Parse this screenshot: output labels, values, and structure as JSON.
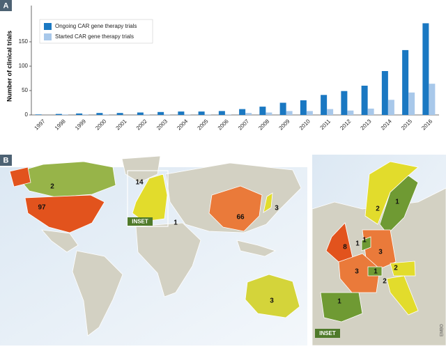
{
  "chart_data": {
    "type": "bar",
    "panel": "A",
    "ylabel": "Number of clinical trials",
    "categories": [
      "1997",
      "1998",
      "1999",
      "2000",
      "2001",
      "2002",
      "2003",
      "2004",
      "2005",
      "2006",
      "2007",
      "2008",
      "2009",
      "2010",
      "2011",
      "2012",
      "2013",
      "2014",
      "2015",
      "2016"
    ],
    "series": [
      {
        "name": "Ongoing CAR gene therapy trials",
        "color": "#1a78c2",
        "values": [
          1,
          2,
          3,
          4,
          4,
          5,
          6,
          7,
          7,
          8,
          12,
          17,
          25,
          30,
          41,
          49,
          60,
          90,
          133,
          188
        ]
      },
      {
        "name": "Started CAR gene therapy trials",
        "color": "#a8c8ea",
        "values": [
          0,
          1,
          1,
          1,
          0,
          1,
          1,
          1,
          1,
          1,
          4,
          5,
          8,
          8,
          12,
          9,
          13,
          31,
          46,
          64
        ]
      }
    ],
    "ylim": [
      0,
      200
    ],
    "yticks": [
      0,
      50,
      100,
      150
    ],
    "legend": "upper-left"
  },
  "map": {
    "panel": "B",
    "world_counts": [
      2,
      97,
      14,
      66,
      3,
      3,
      1
    ],
    "inset_counts": [
      2,
      1,
      8,
      1,
      1,
      3,
      3,
      1,
      2,
      2,
      1
    ],
    "inset_label": "INSET",
    "credit": "EMBO"
  }
}
